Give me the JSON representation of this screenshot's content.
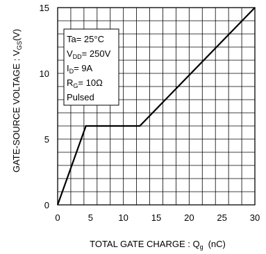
{
  "chart_data": {
    "type": "line",
    "xlabel_main": "TOTAL GATE CHARGE : Q",
    "xlabel_sub": "g",
    "xlabel_unit": "(nC)",
    "ylabel_main": "GATE-SOURCE VOLTAGE : V",
    "ylabel_sub": "GS",
    "ylabel_unit": "(V)",
    "xlim": [
      0,
      30
    ],
    "ylim": [
      0,
      15
    ],
    "x_ticks": [
      "0",
      "5",
      "10",
      "15",
      "20",
      "25",
      "30"
    ],
    "y_ticks": [
      "0",
      "5",
      "10",
      "15"
    ],
    "grid": true,
    "grid_x_step": 2,
    "grid_y_step": 1,
    "series": [
      {
        "x": [
          0,
          4.3,
          12.5,
          30
        ],
        "y": [
          0,
          6,
          6,
          15
        ]
      }
    ],
    "conditions": [
      {
        "main": "Ta= 25°C",
        "sub": "",
        "rest": ""
      },
      {
        "main": "V",
        "sub": "DD",
        "rest": "= 250V"
      },
      {
        "main": "I",
        "sub": "D",
        "rest": "= 9A"
      },
      {
        "main": "R",
        "sub": "G",
        "rest": "= 10Ω"
      },
      {
        "main": "Pulsed",
        "sub": "",
        "rest": ""
      }
    ]
  }
}
